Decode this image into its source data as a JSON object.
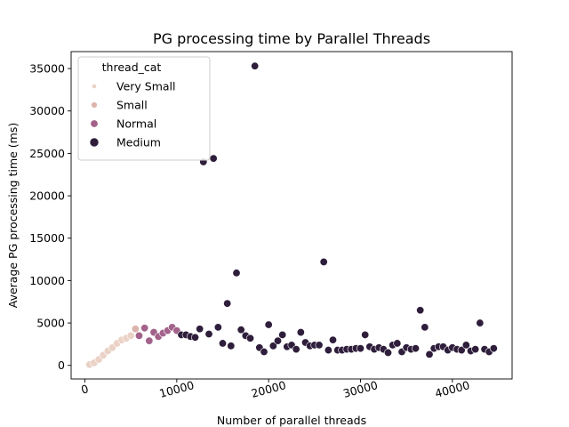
{
  "chart_data": {
    "type": "scatter",
    "title": "PG processing time by Parallel Threads",
    "xlabel": "Number of parallel threads",
    "ylabel": "Average PG processing time (ms)",
    "xlim": [
      -1500,
      46500
    ],
    "ylim": [
      -1600,
      37000
    ],
    "x_ticks": [
      0,
      10000,
      20000,
      30000,
      40000
    ],
    "x_tick_labels": [
      "0",
      "10000",
      "20000",
      "30000",
      "40000"
    ],
    "y_ticks": [
      0,
      5000,
      10000,
      15000,
      20000,
      25000,
      30000,
      35000
    ],
    "y_tick_labels": [
      "0",
      "5000",
      "10000",
      "15000",
      "20000",
      "25000",
      "30000",
      "35000"
    ],
    "grid": false,
    "legend": {
      "title": "thread_cat",
      "placement": "top-left",
      "entries": [
        "Very Small",
        "Small",
        "Normal",
        "Medium"
      ]
    },
    "colors": {
      "Very Small": "#ebd2c6",
      "Small": "#dcb4ac",
      "Normal": "#a3628a",
      "Medium": "#2e1e3b"
    },
    "series": [
      {
        "name": "Very Small",
        "points": [
          [
            500,
            100
          ],
          [
            1000,
            300
          ],
          [
            1500,
            700
          ],
          [
            2000,
            1200
          ],
          [
            2500,
            1700
          ],
          [
            3000,
            2100
          ],
          [
            3500,
            2600
          ],
          [
            4000,
            3000
          ],
          [
            4500,
            3200
          ],
          [
            5000,
            3500
          ]
        ]
      },
      {
        "name": "Small",
        "points": [
          [
            5500,
            4300
          ]
        ]
      },
      {
        "name": "Normal",
        "points": [
          [
            5900,
            3500
          ],
          [
            6500,
            4400
          ],
          [
            7000,
            2900
          ],
          [
            7500,
            3900
          ],
          [
            8000,
            3400
          ],
          [
            8500,
            3800
          ],
          [
            9000,
            4100
          ],
          [
            9500,
            4500
          ],
          [
            10000,
            4100
          ]
        ]
      },
      {
        "name": "Medium",
        "points": [
          [
            10500,
            3600
          ],
          [
            11000,
            3600
          ],
          [
            11500,
            3400
          ],
          [
            12000,
            3300
          ],
          [
            12500,
            4300
          ],
          [
            12900,
            24000
          ],
          [
            13500,
            3700
          ],
          [
            14000,
            24400
          ],
          [
            14500,
            4500
          ],
          [
            15000,
            2600
          ],
          [
            15500,
            7300
          ],
          [
            15900,
            2300
          ],
          [
            16500,
            10900
          ],
          [
            17000,
            4200
          ],
          [
            17500,
            3500
          ],
          [
            18000,
            3200
          ],
          [
            18500,
            35300
          ],
          [
            19000,
            2100
          ],
          [
            19500,
            1600
          ],
          [
            20000,
            4800
          ],
          [
            20500,
            2300
          ],
          [
            21000,
            2900
          ],
          [
            21500,
            3600
          ],
          [
            22000,
            2200
          ],
          [
            22500,
            2400
          ],
          [
            23000,
            1900
          ],
          [
            23500,
            3900
          ],
          [
            24000,
            2700
          ],
          [
            24500,
            2300
          ],
          [
            25000,
            2400
          ],
          [
            25500,
            2400
          ],
          [
            26000,
            12200
          ],
          [
            26500,
            1800
          ],
          [
            27000,
            3000
          ],
          [
            27500,
            1800
          ],
          [
            28000,
            1800
          ],
          [
            28500,
            1900
          ],
          [
            29000,
            1900
          ],
          [
            29500,
            2000
          ],
          [
            30000,
            2000
          ],
          [
            30500,
            3600
          ],
          [
            31000,
            2200
          ],
          [
            31500,
            1900
          ],
          [
            32000,
            2100
          ],
          [
            32500,
            1900
          ],
          [
            33000,
            1500
          ],
          [
            33500,
            2400
          ],
          [
            34000,
            2600
          ],
          [
            34500,
            1600
          ],
          [
            35000,
            2100
          ],
          [
            35500,
            1900
          ],
          [
            36000,
            2000
          ],
          [
            36500,
            6500
          ],
          [
            37000,
            4500
          ],
          [
            37500,
            1300
          ],
          [
            38000,
            2000
          ],
          [
            38500,
            2200
          ],
          [
            39000,
            2200
          ],
          [
            39500,
            1800
          ],
          [
            40000,
            2100
          ],
          [
            40500,
            1900
          ],
          [
            41000,
            1800
          ],
          [
            41500,
            2400
          ],
          [
            42000,
            1700
          ],
          [
            42500,
            1900
          ],
          [
            43000,
            5000
          ],
          [
            43500,
            1900
          ],
          [
            44000,
            1600
          ],
          [
            44500,
            2000
          ]
        ]
      }
    ]
  }
}
